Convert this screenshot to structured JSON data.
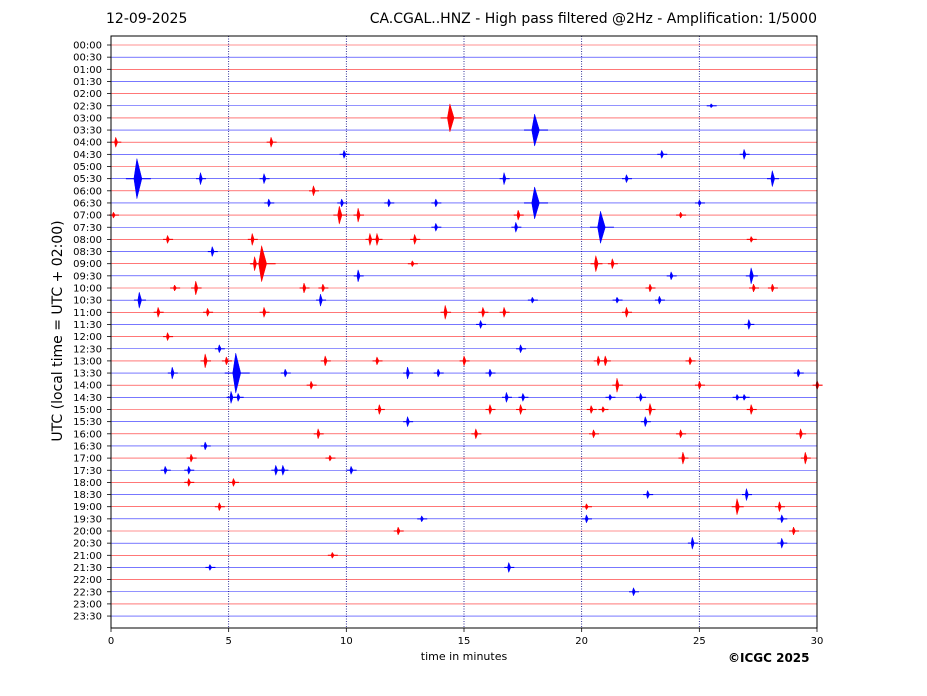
{
  "header": {
    "date": "12-09-2025",
    "title": "CA.CGAL..HNZ - High pass filtered @2Hz - Amplification: 1/5000"
  },
  "footer": {
    "copyright": "©ICGC 2025"
  },
  "colors": {
    "red_trace": "#ff0000",
    "blue_trace": "#0000ff",
    "grid": "#000080"
  },
  "chart_data": {
    "type": "line",
    "title": "CA.CGAL..HNZ - High pass filtered @2Hz - Amplification: 1/5000",
    "xlabel": "time in minutes",
    "ylabel": "UTC (local time = UTC + 02:00)",
    "xlim": [
      0,
      30
    ],
    "x_ticks": [
      0,
      5,
      10,
      15,
      20,
      25,
      30
    ],
    "vertical_grid_at": [
      5,
      10,
      15,
      20,
      25
    ],
    "rows": [
      "00:00",
      "00:30",
      "01:00",
      "01:30",
      "02:00",
      "02:30",
      "03:00",
      "03:30",
      "04:00",
      "04:30",
      "05:00",
      "05:30",
      "06:00",
      "06:30",
      "07:00",
      "07:30",
      "08:00",
      "08:30",
      "09:00",
      "09:30",
      "10:00",
      "10:30",
      "11:00",
      "11:30",
      "12:00",
      "12:30",
      "13:00",
      "13:30",
      "14:00",
      "14:30",
      "15:00",
      "15:30",
      "16:00",
      "16:30",
      "17:00",
      "17:30",
      "18:00",
      "18:30",
      "19:00",
      "19:30",
      "20:00",
      "20:30",
      "21:00",
      "21:30",
      "22:00",
      "22:30",
      "23:00",
      "23:30"
    ],
    "row_colors": "alternating red (full hours) / blue (half hours)",
    "events": [
      {
        "row": "02:30",
        "minute": 25.5,
        "amp": 2
      },
      {
        "row": "03:00",
        "minute": 14.4,
        "amp": 14
      },
      {
        "row": "03:30",
        "minute": 18.0,
        "amp": 16
      },
      {
        "row": "04:00",
        "minute": 0.2,
        "amp": 5
      },
      {
        "row": "04:00",
        "minute": 6.8,
        "amp": 5
      },
      {
        "row": "04:30",
        "minute": 9.9,
        "amp": 4
      },
      {
        "row": "04:30",
        "minute": 23.4,
        "amp": 4
      },
      {
        "row": "04:30",
        "minute": 26.9,
        "amp": 5
      },
      {
        "row": "05:30",
        "minute": 1.1,
        "amp": 20
      },
      {
        "row": "05:30",
        "minute": 3.8,
        "amp": 6
      },
      {
        "row": "05:30",
        "minute": 6.5,
        "amp": 5
      },
      {
        "row": "05:30",
        "minute": 16.7,
        "amp": 6
      },
      {
        "row": "05:30",
        "minute": 21.9,
        "amp": 4
      },
      {
        "row": "05:30",
        "minute": 28.1,
        "amp": 8
      },
      {
        "row": "06:00",
        "minute": 8.6,
        "amp": 5
      },
      {
        "row": "06:30",
        "minute": 6.7,
        "amp": 4
      },
      {
        "row": "06:30",
        "minute": 9.8,
        "amp": 4
      },
      {
        "row": "06:30",
        "minute": 11.8,
        "amp": 4
      },
      {
        "row": "06:30",
        "minute": 13.8,
        "amp": 4
      },
      {
        "row": "06:30",
        "minute": 18.0,
        "amp": 16
      },
      {
        "row": "06:30",
        "minute": 25.0,
        "amp": 3
      },
      {
        "row": "07:00",
        "minute": 0.1,
        "amp": 3
      },
      {
        "row": "07:00",
        "minute": 9.7,
        "amp": 9
      },
      {
        "row": "07:00",
        "minute": 10.5,
        "amp": 7
      },
      {
        "row": "07:00",
        "minute": 17.3,
        "amp": 5
      },
      {
        "row": "07:00",
        "minute": 24.2,
        "amp": 3
      },
      {
        "row": "07:30",
        "minute": 13.8,
        "amp": 4
      },
      {
        "row": "07:30",
        "minute": 17.2,
        "amp": 5
      },
      {
        "row": "07:30",
        "minute": 20.8,
        "amp": 16
      },
      {
        "row": "08:00",
        "minute": 2.4,
        "amp": 4
      },
      {
        "row": "08:00",
        "minute": 6.0,
        "amp": 6
      },
      {
        "row": "08:00",
        "minute": 11.0,
        "amp": 6
      },
      {
        "row": "08:00",
        "minute": 11.3,
        "amp": 6
      },
      {
        "row": "08:00",
        "minute": 12.9,
        "amp": 5
      },
      {
        "row": "08:00",
        "minute": 27.2,
        "amp": 3
      },
      {
        "row": "08:30",
        "minute": 4.3,
        "amp": 5
      },
      {
        "row": "09:00",
        "minute": 6.1,
        "amp": 7
      },
      {
        "row": "09:00",
        "minute": 6.4,
        "amp": 18
      },
      {
        "row": "09:00",
        "minute": 12.8,
        "amp": 3
      },
      {
        "row": "09:00",
        "minute": 20.6,
        "amp": 8
      },
      {
        "row": "09:00",
        "minute": 21.3,
        "amp": 5
      },
      {
        "row": "09:30",
        "minute": 10.5,
        "amp": 6
      },
      {
        "row": "09:30",
        "minute": 23.8,
        "amp": 4
      },
      {
        "row": "09:30",
        "minute": 27.2,
        "amp": 8
      },
      {
        "row": "10:00",
        "minute": 2.7,
        "amp": 3
      },
      {
        "row": "10:00",
        "minute": 3.6,
        "amp": 7
      },
      {
        "row": "10:00",
        "minute": 8.2,
        "amp": 5
      },
      {
        "row": "10:00",
        "minute": 9.0,
        "amp": 4
      },
      {
        "row": "10:00",
        "minute": 22.9,
        "amp": 4
      },
      {
        "row": "10:00",
        "minute": 27.3,
        "amp": 4
      },
      {
        "row": "10:00",
        "minute": 28.1,
        "amp": 4
      },
      {
        "row": "10:30",
        "minute": 1.2,
        "amp": 8
      },
      {
        "row": "10:30",
        "minute": 8.9,
        "amp": 6
      },
      {
        "row": "10:30",
        "minute": 17.9,
        "amp": 3
      },
      {
        "row": "10:30",
        "minute": 21.5,
        "amp": 3
      },
      {
        "row": "10:30",
        "minute": 23.3,
        "amp": 4
      },
      {
        "row": "11:00",
        "minute": 2.0,
        "amp": 5
      },
      {
        "row": "11:00",
        "minute": 4.1,
        "amp": 4
      },
      {
        "row": "11:00",
        "minute": 6.5,
        "amp": 5
      },
      {
        "row": "11:00",
        "minute": 14.2,
        "amp": 7
      },
      {
        "row": "11:00",
        "minute": 15.8,
        "amp": 5
      },
      {
        "row": "11:00",
        "minute": 16.7,
        "amp": 5
      },
      {
        "row": "11:00",
        "minute": 21.9,
        "amp": 5
      },
      {
        "row": "11:30",
        "minute": 15.7,
        "amp": 4
      },
      {
        "row": "11:30",
        "minute": 27.1,
        "amp": 5
      },
      {
        "row": "12:00",
        "minute": 2.4,
        "amp": 4
      },
      {
        "row": "12:30",
        "minute": 4.6,
        "amp": 4
      },
      {
        "row": "12:30",
        "minute": 17.4,
        "amp": 4
      },
      {
        "row": "13:00",
        "minute": 4.0,
        "amp": 7
      },
      {
        "row": "13:00",
        "minute": 4.9,
        "amp": 4
      },
      {
        "row": "13:00",
        "minute": 9.1,
        "amp": 5
      },
      {
        "row": "13:00",
        "minute": 11.3,
        "amp": 4
      },
      {
        "row": "13:00",
        "minute": 15.0,
        "amp": 5
      },
      {
        "row": "13:00",
        "minute": 20.7,
        "amp": 5
      },
      {
        "row": "13:00",
        "minute": 21.0,
        "amp": 5
      },
      {
        "row": "13:00",
        "minute": 24.6,
        "amp": 4
      },
      {
        "row": "13:30",
        "minute": 2.6,
        "amp": 6
      },
      {
        "row": "13:30",
        "minute": 5.3,
        "amp": 20
      },
      {
        "row": "13:30",
        "minute": 7.4,
        "amp": 4
      },
      {
        "row": "13:30",
        "minute": 12.6,
        "amp": 6
      },
      {
        "row": "13:30",
        "minute": 13.9,
        "amp": 4
      },
      {
        "row": "13:30",
        "minute": 16.1,
        "amp": 4
      },
      {
        "row": "13:30",
        "minute": 29.2,
        "amp": 4
      },
      {
        "row": "14:00",
        "minute": 8.5,
        "amp": 4
      },
      {
        "row": "14:00",
        "minute": 21.5,
        "amp": 7
      },
      {
        "row": "14:00",
        "minute": 25.0,
        "amp": 4
      },
      {
        "row": "14:00",
        "minute": 30.0,
        "amp": 5
      },
      {
        "row": "14:30",
        "minute": 5.1,
        "amp": 6
      },
      {
        "row": "14:30",
        "minute": 5.4,
        "amp": 4
      },
      {
        "row": "14:30",
        "minute": 16.8,
        "amp": 5
      },
      {
        "row": "14:30",
        "minute": 17.5,
        "amp": 4
      },
      {
        "row": "14:30",
        "minute": 21.2,
        "amp": 3
      },
      {
        "row": "14:30",
        "minute": 22.5,
        "amp": 4
      },
      {
        "row": "14:30",
        "minute": 26.6,
        "amp": 3
      },
      {
        "row": "14:30",
        "minute": 26.9,
        "amp": 3
      },
      {
        "row": "15:00",
        "minute": 11.4,
        "amp": 5
      },
      {
        "row": "15:00",
        "minute": 16.1,
        "amp": 5
      },
      {
        "row": "15:00",
        "minute": 17.4,
        "amp": 5
      },
      {
        "row": "15:00",
        "minute": 20.4,
        "amp": 4
      },
      {
        "row": "15:00",
        "minute": 20.9,
        "amp": 3
      },
      {
        "row": "15:00",
        "minute": 22.9,
        "amp": 6
      },
      {
        "row": "15:00",
        "minute": 27.2,
        "amp": 5
      },
      {
        "row": "15:30",
        "minute": 12.6,
        "amp": 5
      },
      {
        "row": "15:30",
        "minute": 22.7,
        "amp": 5
      },
      {
        "row": "16:00",
        "minute": 8.8,
        "amp": 5
      },
      {
        "row": "16:00",
        "minute": 15.5,
        "amp": 5
      },
      {
        "row": "16:00",
        "minute": 20.5,
        "amp": 4
      },
      {
        "row": "16:00",
        "minute": 24.2,
        "amp": 4
      },
      {
        "row": "16:00",
        "minute": 29.3,
        "amp": 5
      },
      {
        "row": "16:30",
        "minute": 4.0,
        "amp": 4
      },
      {
        "row": "17:00",
        "minute": 3.4,
        "amp": 4
      },
      {
        "row": "17:00",
        "minute": 9.3,
        "amp": 3
      },
      {
        "row": "17:00",
        "minute": 24.3,
        "amp": 6
      },
      {
        "row": "17:00",
        "minute": 29.5,
        "amp": 6
      },
      {
        "row": "17:30",
        "minute": 2.3,
        "amp": 4
      },
      {
        "row": "17:30",
        "minute": 3.3,
        "amp": 4
      },
      {
        "row": "17:30",
        "minute": 7.0,
        "amp": 5
      },
      {
        "row": "17:30",
        "minute": 7.3,
        "amp": 5
      },
      {
        "row": "17:30",
        "minute": 10.2,
        "amp": 4
      },
      {
        "row": "18:00",
        "minute": 3.3,
        "amp": 4
      },
      {
        "row": "18:00",
        "minute": 5.2,
        "amp": 4
      },
      {
        "row": "18:30",
        "minute": 22.8,
        "amp": 4
      },
      {
        "row": "18:30",
        "minute": 27.0,
        "amp": 6
      },
      {
        "row": "19:00",
        "minute": 4.6,
        "amp": 4
      },
      {
        "row": "19:00",
        "minute": 20.2,
        "amp": 3
      },
      {
        "row": "19:00",
        "minute": 26.6,
        "amp": 8
      },
      {
        "row": "19:00",
        "minute": 28.4,
        "amp": 5
      },
      {
        "row": "19:30",
        "minute": 13.2,
        "amp": 3
      },
      {
        "row": "19:30",
        "minute": 20.2,
        "amp": 4
      },
      {
        "row": "19:30",
        "minute": 28.5,
        "amp": 4
      },
      {
        "row": "20:00",
        "minute": 12.2,
        "amp": 4
      },
      {
        "row": "20:00",
        "minute": 29.0,
        "amp": 4
      },
      {
        "row": "20:30",
        "minute": 24.7,
        "amp": 6
      },
      {
        "row": "20:30",
        "minute": 28.5,
        "amp": 5
      },
      {
        "row": "21:00",
        "minute": 9.4,
        "amp": 3
      },
      {
        "row": "21:30",
        "minute": 4.2,
        "amp": 3
      },
      {
        "row": "21:30",
        "minute": 16.9,
        "amp": 5
      },
      {
        "row": "22:30",
        "minute": 22.2,
        "amp": 4
      }
    ]
  }
}
